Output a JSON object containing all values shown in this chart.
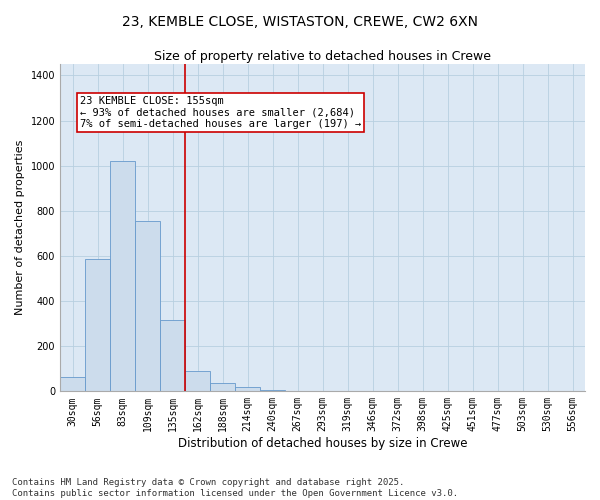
{
  "title_line1": "23, KEMBLE CLOSE, WISTASTON, CREWE, CW2 6XN",
  "title_line2": "Size of property relative to detached houses in Crewe",
  "xlabel": "Distribution of detached houses by size in Crewe",
  "ylabel": "Number of detached properties",
  "categories": [
    "30sqm",
    "56sqm",
    "83sqm",
    "109sqm",
    "135sqm",
    "162sqm",
    "188sqm",
    "214sqm",
    "240sqm",
    "267sqm",
    "293sqm",
    "319sqm",
    "346sqm",
    "372sqm",
    "398sqm",
    "425sqm",
    "451sqm",
    "477sqm",
    "503sqm",
    "530sqm",
    "556sqm"
  ],
  "values": [
    65,
    585,
    1020,
    755,
    315,
    90,
    38,
    18,
    5,
    2,
    1,
    0,
    0,
    0,
    0,
    0,
    0,
    0,
    0,
    0,
    0
  ],
  "bar_color": "#ccdcec",
  "bar_edge_color": "#6699cc",
  "vline_color": "#cc0000",
  "annotation_text": "23 KEMBLE CLOSE: 155sqm\n← 93% of detached houses are smaller (2,684)\n7% of semi-detached houses are larger (197) →",
  "annotation_box_color": "#cc0000",
  "ylim": [
    0,
    1450
  ],
  "yticks": [
    0,
    200,
    400,
    600,
    800,
    1000,
    1200,
    1400
  ],
  "grid_color": "#b8cfe0",
  "background_color": "#dce8f4",
  "footer_text": "Contains HM Land Registry data © Crown copyright and database right 2025.\nContains public sector information licensed under the Open Government Licence v3.0.",
  "title_fontsize": 10,
  "subtitle_fontsize": 9,
  "xlabel_fontsize": 8.5,
  "ylabel_fontsize": 8,
  "tick_fontsize": 7,
  "annotation_fontsize": 7.5,
  "footer_fontsize": 6.5
}
